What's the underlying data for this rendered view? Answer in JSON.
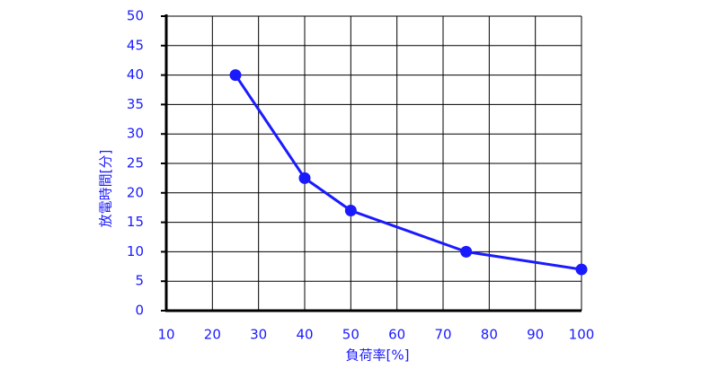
{
  "chart_data": {
    "type": "line",
    "xlabel": "負荷率[%]",
    "ylabel": "放電時間[分]",
    "x": [
      25,
      40,
      50,
      75,
      100
    ],
    "values": [
      40,
      22.5,
      17,
      10,
      7
    ],
    "color": "#1a1aff",
    "label_color": "#1a1aff",
    "xlim": [
      10,
      100
    ],
    "xticks": [
      10,
      20,
      30,
      40,
      50,
      60,
      70,
      80,
      90,
      100
    ],
    "ylim": [
      0,
      50
    ],
    "yticks": [
      0,
      5,
      10,
      15,
      20,
      25,
      30,
      35,
      40,
      45,
      50
    ],
    "grid": true
  }
}
